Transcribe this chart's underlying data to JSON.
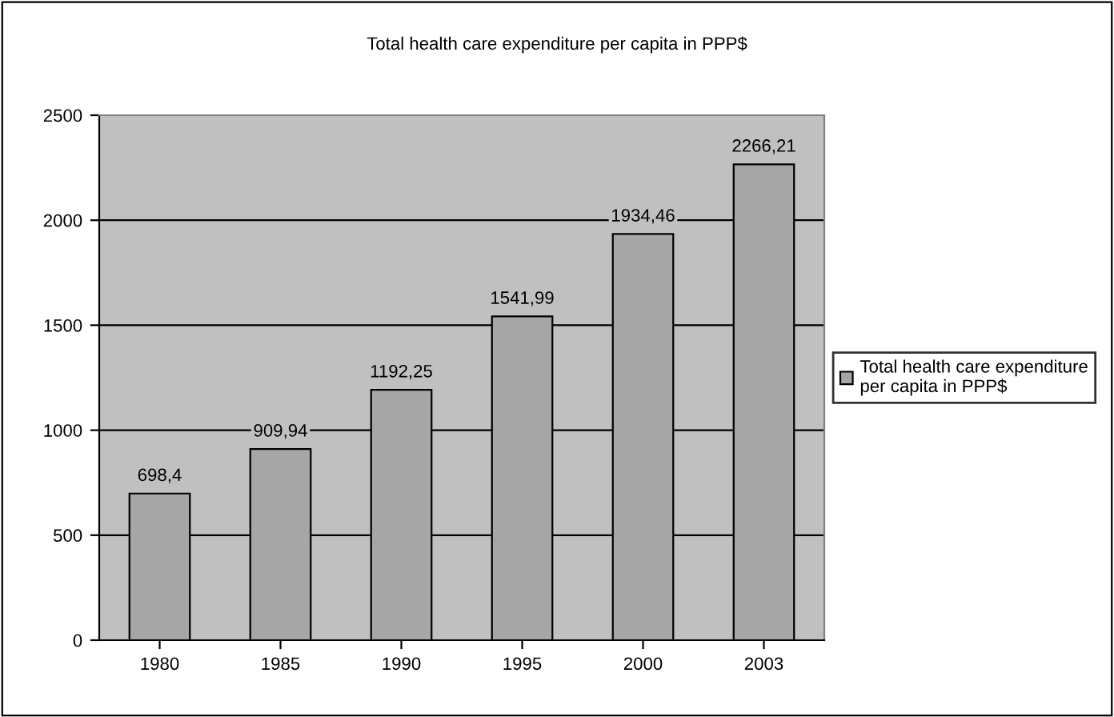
{
  "chart_data": {
    "type": "bar",
    "title": "Total health care expenditure per capita in PPP$",
    "categories": [
      "1980",
      "1985",
      "1990",
      "1995",
      "2000",
      "2003"
    ],
    "series": [
      {
        "name": "Total health care expenditure\nper capita in PPP$",
        "color": "#a6a6a6",
        "values": [
          698.4,
          909.94,
          1192.25,
          1541.99,
          1934.46,
          2266.21
        ],
        "value_labels": [
          "698,4",
          "909,94",
          "1192,25",
          "1541,99",
          "1934,46",
          "2266,21"
        ]
      }
    ],
    "ylim": [
      0,
      2500
    ],
    "yticks": [
      0,
      500,
      1000,
      1500,
      2000,
      2500
    ],
    "grid": "y",
    "legend": "right"
  }
}
